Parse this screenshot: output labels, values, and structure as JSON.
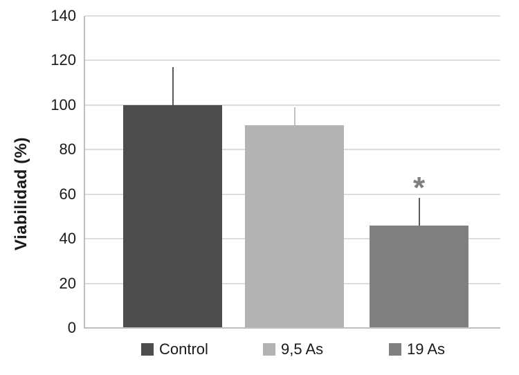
{
  "figure": {
    "background": "#ffffff"
  },
  "chart_data": {
    "type": "bar",
    "title": "",
    "ylabel": "Viabilidad (%)",
    "xlabel": "",
    "ylim": [
      0,
      140
    ],
    "yticks": [
      0,
      20,
      40,
      60,
      80,
      100,
      120,
      140
    ],
    "grid": "horizontal",
    "legend_position": "bottom",
    "categories": [
      "Control",
      "9,5 As",
      "19 As"
    ],
    "series": [
      {
        "name": "Control",
        "value": 100,
        "error_plus": 17,
        "color": "#4d4d4d",
        "error_color": "#595959",
        "annotation": ""
      },
      {
        "name": "9,5 As",
        "value": 91,
        "error_plus": 8,
        "color": "#b3b3b3",
        "error_color": "#c2c2c2",
        "annotation": ""
      },
      {
        "name": "19 As",
        "value": 46,
        "error_plus": 12.5,
        "color": "#808080",
        "error_color": "#595959",
        "annotation": "*"
      }
    ],
    "annotation_color": "#7f7f7f",
    "gridline_color": "#dcdcdc",
    "axis_color": "#bfbfbf",
    "text_color": "#1a1a1a"
  }
}
